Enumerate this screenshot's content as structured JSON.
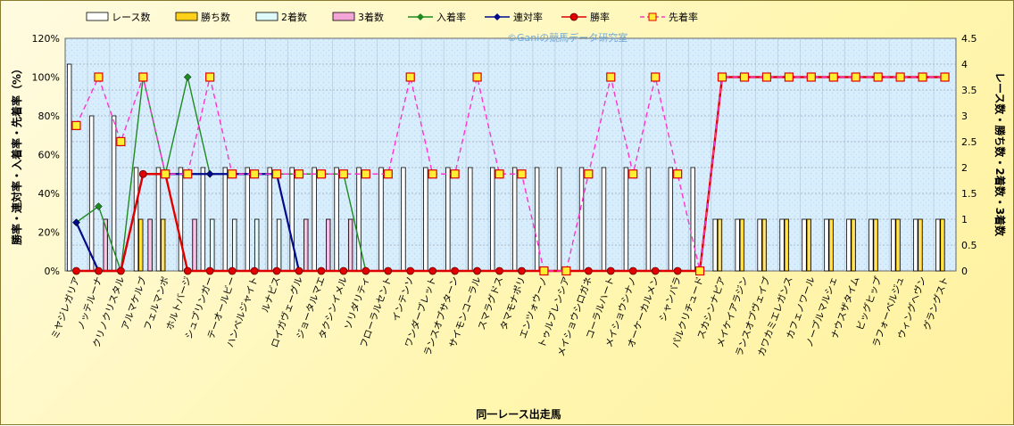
{
  "watermark": "©Ganiの競馬データ研究室",
  "chart_data": {
    "type": "bar",
    "xlabel": "同一レース出走馬",
    "ylabel_left": "勝率・連対率・入着率・先着率（%）",
    "ylabel_right": "レース数・勝ち数・2着数・3着数",
    "yticks_left": [
      "0%",
      "20%",
      "40%",
      "60%",
      "80%",
      "100%",
      "120%"
    ],
    "yticks_right": [
      "0",
      "0.5",
      "1",
      "1.5",
      "2",
      "2.5",
      "3",
      "3.5",
      "4",
      "4.5"
    ],
    "ylim_left": [
      0,
      120
    ],
    "ylim_right": [
      0,
      4.5
    ],
    "grid": true,
    "legend_position": "top",
    "categories": [
      "ミヤジレガリア",
      "ノッテルーナ",
      "クリノクリスタル",
      "アルマケルブ",
      "フェルマンボ",
      "ホルトバージ",
      "シュブリンガー",
      "テーオールビー",
      "ハンベルジャイト",
      "ルナビス",
      "ロイガヴェーグル",
      "ジョータルマエ",
      "タクシンイメル",
      "ソリダリティ",
      "フローラルセント",
      "インテンソ",
      "ワンダーブレット",
      "ランスオブサターン",
      "サイモンコーラル",
      "スマラグドス",
      "タマモナポリ",
      "エンツォウーノ",
      "トゥルブレンシア",
      "メイショウシロガネ",
      "コーラルハート",
      "メイショウシナノ",
      "オーケーカルメン",
      "シャンバラ",
      "パルクリチュード",
      "スカシンナピア",
      "メイケイアラジン",
      "ランスオブヴェイブ",
      "カワカミエレガンス",
      "カフェノワール",
      "ノーブルマルシェ",
      "ナウスザタイム",
      "ビッグヒップ",
      "ラフォーベルジュ",
      "ウィングヘヴン",
      "グラングスト"
    ],
    "series": [
      {
        "name": "レース数",
        "axis": "right",
        "color": "#ffffff",
        "values": [
          4,
          3,
          3,
          2,
          2,
          2,
          2,
          2,
          2,
          2,
          2,
          2,
          2,
          2,
          2,
          2,
          2,
          2,
          2,
          2,
          2,
          2,
          2,
          2,
          2,
          2,
          2,
          2,
          2,
          1,
          1,
          1,
          1,
          1,
          1,
          1,
          1,
          1,
          1,
          1
        ]
      },
      {
        "name": "勝ち数",
        "axis": "right",
        "color": "#ffd11a",
        "values": [
          0,
          0,
          0,
          1,
          1,
          0,
          0,
          0,
          0,
          0,
          0,
          0,
          0,
          0,
          0,
          0,
          0,
          0,
          0,
          0,
          0,
          0,
          0,
          0,
          0,
          0,
          0,
          0,
          0,
          1,
          1,
          1,
          1,
          1,
          1,
          1,
          1,
          1,
          1,
          1
        ]
      },
      {
        "name": "2着数",
        "axis": "right",
        "color": "#dffafa",
        "values": [
          0,
          0,
          0,
          0,
          0,
          0,
          1,
          1,
          1,
          1,
          0,
          0,
          0,
          0,
          0,
          0,
          0,
          0,
          0,
          0,
          0,
          0,
          0,
          0,
          0,
          0,
          0,
          0,
          0,
          0,
          0,
          0,
          0,
          0,
          0,
          0,
          0,
          0,
          0,
          0
        ]
      },
      {
        "name": "3着数",
        "axis": "right",
        "color": "#f3a6d6",
        "values": [
          0,
          1,
          0,
          1,
          0,
          1,
          0,
          0,
          0,
          0,
          1,
          1,
          1,
          0,
          0,
          0,
          0,
          0,
          0,
          0,
          0,
          0,
          0,
          0,
          0,
          0,
          0,
          0,
          0,
          0,
          0,
          0,
          0,
          0,
          0,
          0,
          0,
          0,
          0,
          0
        ]
      },
      {
        "name": "入着率",
        "axis": "left",
        "color": "#1f8a1f",
        "marker": "diamond",
        "values": [
          25,
          33.3,
          0,
          100,
          50,
          100,
          50,
          50,
          50,
          50,
          50,
          50,
          50,
          0,
          null,
          null,
          null,
          null,
          null,
          null,
          null,
          null,
          null,
          null,
          null,
          null,
          null,
          null,
          null,
          null,
          null,
          null,
          null,
          null,
          null,
          null,
          null,
          null,
          null,
          null
        ]
      },
      {
        "name": "連対率",
        "axis": "left",
        "color": "#000a8c",
        "marker": "diamond",
        "values": [
          25,
          0,
          0,
          50,
          50,
          50,
          50,
          50,
          50,
          50,
          0,
          null,
          null,
          null,
          null,
          null,
          null,
          null,
          null,
          null,
          null,
          null,
          null,
          null,
          null,
          null,
          null,
          null,
          null,
          null,
          null,
          null,
          null,
          null,
          null,
          null,
          null,
          null,
          null,
          null
        ]
      },
      {
        "name": "勝率",
        "axis": "left",
        "color": "#e00000",
        "marker": "circle",
        "values": [
          0,
          0,
          0,
          50,
          50,
          0,
          0,
          0,
          0,
          0,
          0,
          0,
          0,
          0,
          0,
          0,
          0,
          0,
          0,
          0,
          0,
          0,
          0,
          0,
          0,
          0,
          0,
          0,
          0,
          100,
          100,
          100,
          100,
          100,
          100,
          100,
          100,
          100,
          100,
          100
        ]
      },
      {
        "name": "先着率",
        "axis": "left",
        "color": "#ff33cc",
        "marker": "square",
        "dashed": true,
        "values": [
          75,
          100,
          66.7,
          100,
          50,
          50,
          100,
          50,
          50,
          50,
          50,
          50,
          50,
          50,
          50,
          100,
          50,
          50,
          100,
          50,
          50,
          0,
          0,
          50,
          100,
          50,
          100,
          50,
          0,
          100,
          100,
          100,
          100,
          100,
          100,
          100,
          100,
          100,
          100,
          100
        ]
      }
    ]
  }
}
